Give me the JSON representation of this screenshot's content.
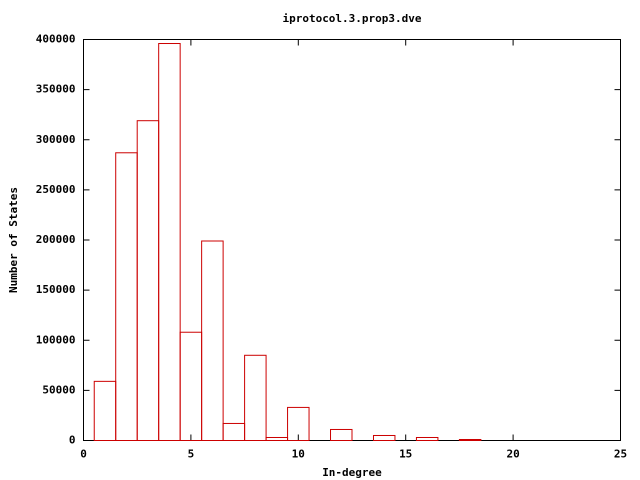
{
  "chart_data": {
    "type": "histogram",
    "title": "iprotocol.3.prop3.dve",
    "x_label": "In-degree",
    "y_label": "Number of States",
    "bins": [
      0.5,
      1.5,
      2.5,
      3.5,
      4.5,
      5.5,
      6.5,
      7.5,
      8.5,
      9.5,
      10.5,
      11.5,
      12.5,
      13.5,
      14.5,
      15.5,
      16.5,
      17.5,
      18.5
    ],
    "values": [
      59000,
      287000,
      319000,
      396000,
      108000,
      199000,
      17000,
      85000,
      3000,
      33000,
      0,
      11000,
      0,
      5000,
      0,
      3000,
      0,
      1000
    ],
    "color": "#cc0000",
    "xlim": [
      0,
      25
    ],
    "xticks": [
      0,
      5,
      10,
      15,
      20,
      25
    ],
    "ylim": [
      0,
      400000
    ],
    "yticks": [
      0,
      50000,
      100000,
      150000,
      200000,
      250000,
      300000,
      350000,
      400000
    ]
  }
}
